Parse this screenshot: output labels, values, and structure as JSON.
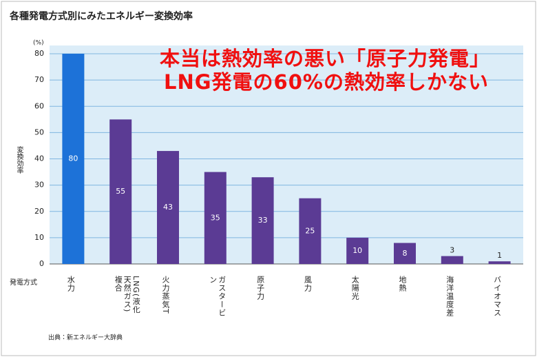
{
  "chart_data": {
    "type": "bar",
    "title": "各種発電方式別にみたエネルギー変換効率",
    "y_unit": "(%)",
    "ylabel": "変換効率",
    "xlabel": "発電方式",
    "source": "出典：新エネルギー大辞典",
    "annotations": [
      "本当は熱効率の悪い「原子力発電」",
      "LNG発電の60%の熱効率しかない"
    ],
    "categories": [
      "水力",
      "LNG(液化天然ガス)複合",
      "火力蒸気T",
      "ガスタービン",
      "原子力",
      "風力",
      "太陽光",
      "地熱",
      "海洋温度差",
      "バイオマス"
    ],
    "values": [
      80,
      55,
      43,
      35,
      33,
      25,
      10,
      8,
      3,
      1
    ],
    "colors": [
      "#1d72d8",
      "#5b3b94",
      "#5b3b94",
      "#5b3b94",
      "#5b3b94",
      "#5b3b94",
      "#5b3b94",
      "#5b3b94",
      "#5b3b94",
      "#5b3b94"
    ],
    "ylim": [
      0,
      80
    ],
    "yticks": [
      0,
      10,
      20,
      30,
      40,
      50,
      60,
      70,
      80
    ],
    "grid": true
  }
}
